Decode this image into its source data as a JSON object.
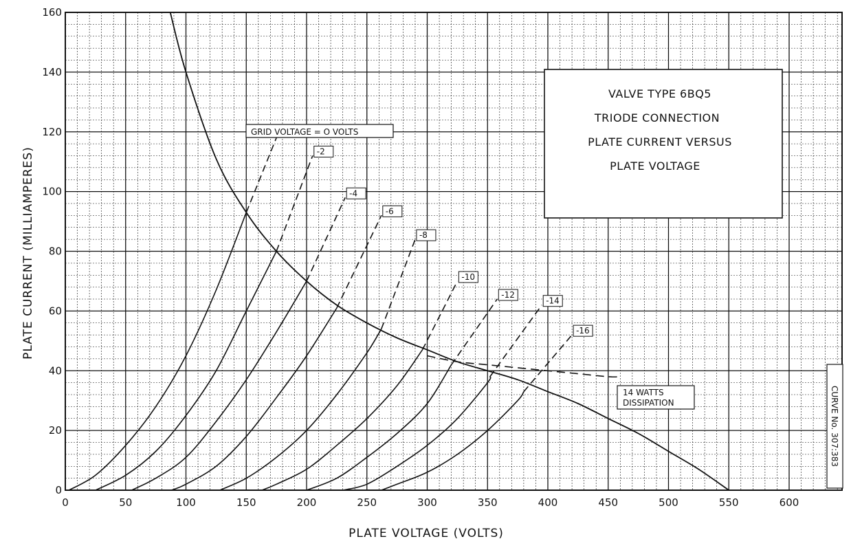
{
  "chart_data": {
    "type": "line",
    "title_lines": [
      "VALVE TYPE 6BQ5",
      "TRIODE CONNECTION",
      "PLATE CURRENT VERSUS",
      "PLATE VOLTAGE"
    ],
    "xlabel": "PLATE VOLTAGE (VOLTS)",
    "ylabel": "PLATE CURRENT (MILLIAMPERES)",
    "xlim": [
      0,
      630
    ],
    "ylim": [
      0,
      160
    ],
    "x_ticks": [
      0,
      50,
      100,
      150,
      200,
      250,
      300,
      350,
      400,
      450,
      500,
      550,
      600
    ],
    "y_ticks": [
      0,
      20,
      40,
      60,
      80,
      100,
      120,
      140,
      160
    ],
    "grid": true,
    "grid_label": "GRID VOLTAGE = O VOLTS",
    "curve_number": "CURVE No. 307:383",
    "series": [
      {
        "name": "0",
        "label": "",
        "x": [
          3,
          25,
          50,
          75,
          100,
          125,
          150
        ],
        "y": [
          0,
          5,
          15,
          28,
          45,
          67,
          93
        ],
        "dash_x": [
          150,
          175
        ],
        "dash_y": [
          93,
          118
        ]
      },
      {
        "name": "-2",
        "label": "-2",
        "x": [
          25,
          50,
          75,
          100,
          125,
          150,
          175
        ],
        "y": [
          0,
          5,
          13,
          25,
          40,
          60,
          80
        ],
        "dash_x": [
          175,
          205
        ],
        "dash_y": [
          80,
          112
        ]
      },
      {
        "name": "-4",
        "label": "-4",
        "x": [
          55,
          75,
          100,
          125,
          150,
          175,
          200
        ],
        "y": [
          0,
          4,
          11,
          23,
          37,
          53,
          70
        ],
        "dash_x": [
          200,
          232
        ],
        "dash_y": [
          70,
          98
        ]
      },
      {
        "name": "-6",
        "label": "-6",
        "x": [
          88,
          100,
          125,
          150,
          175,
          200,
          225
        ],
        "y": [
          0,
          2,
          8,
          18,
          31,
          45,
          61
        ],
        "dash_x": [
          225,
          262
        ],
        "dash_y": [
          61,
          92
        ]
      },
      {
        "name": "-8",
        "label": "-8",
        "x": [
          128,
          150,
          175,
          200,
          225,
          250,
          262
        ],
        "y": [
          0,
          4,
          11,
          20,
          32,
          46,
          54
        ],
        "dash_x": [
          262,
          290
        ],
        "dash_y": [
          54,
          84
        ]
      },
      {
        "name": "-10",
        "label": "-10",
        "x": [
          163,
          175,
          200,
          225,
          250,
          275,
          296
        ],
        "y": [
          0,
          2,
          7,
          15,
          24,
          35,
          47
        ],
        "dash_x": [
          296,
          325
        ],
        "dash_y": [
          47,
          70
        ]
      },
      {
        "name": "-12",
        "label": "-12",
        "x": [
          200,
          225,
          250,
          275,
          300,
          320
        ],
        "y": [
          0,
          4,
          11,
          19,
          29,
          42
        ],
        "dash_x": [
          320,
          358
        ],
        "dash_y": [
          42,
          64
        ]
      },
      {
        "name": "-14",
        "label": "-14",
        "x": [
          230,
          250,
          275,
          300,
          325,
          350,
          352
        ],
        "y": [
          0,
          2,
          8,
          15,
          24,
          36,
          38
        ],
        "dash_x": [
          352,
          395
        ],
        "dash_y": [
          38,
          62
        ]
      },
      {
        "name": "-16",
        "label": "-16",
        "x": [
          262,
          275,
          300,
          325,
          350,
          375,
          380
        ],
        "y": [
          0,
          2,
          6,
          12,
          20,
          30,
          33
        ],
        "dash_x": [
          380,
          420
        ],
        "dash_y": [
          33,
          52
        ]
      }
    ],
    "dissipation_curve": {
      "label": [
        "14 WATTS",
        "DISSIPATION"
      ],
      "x": [
        87,
        100,
        125,
        150,
        175,
        200,
        225,
        250,
        275,
        300,
        325,
        350,
        375,
        400,
        425,
        450,
        475,
        500,
        525,
        550
      ],
      "y": [
        160,
        140,
        111,
        93,
        80,
        70,
        62,
        56,
        51,
        47,
        43,
        40,
        37,
        33,
        29,
        24,
        19,
        13,
        7,
        0
      ]
    },
    "dissipation_leader": {
      "x": [
        300,
        325,
        350,
        375,
        400,
        425,
        450,
        460
      ],
      "y": [
        45,
        43,
        42,
        41,
        40,
        39,
        38,
        38
      ]
    }
  }
}
